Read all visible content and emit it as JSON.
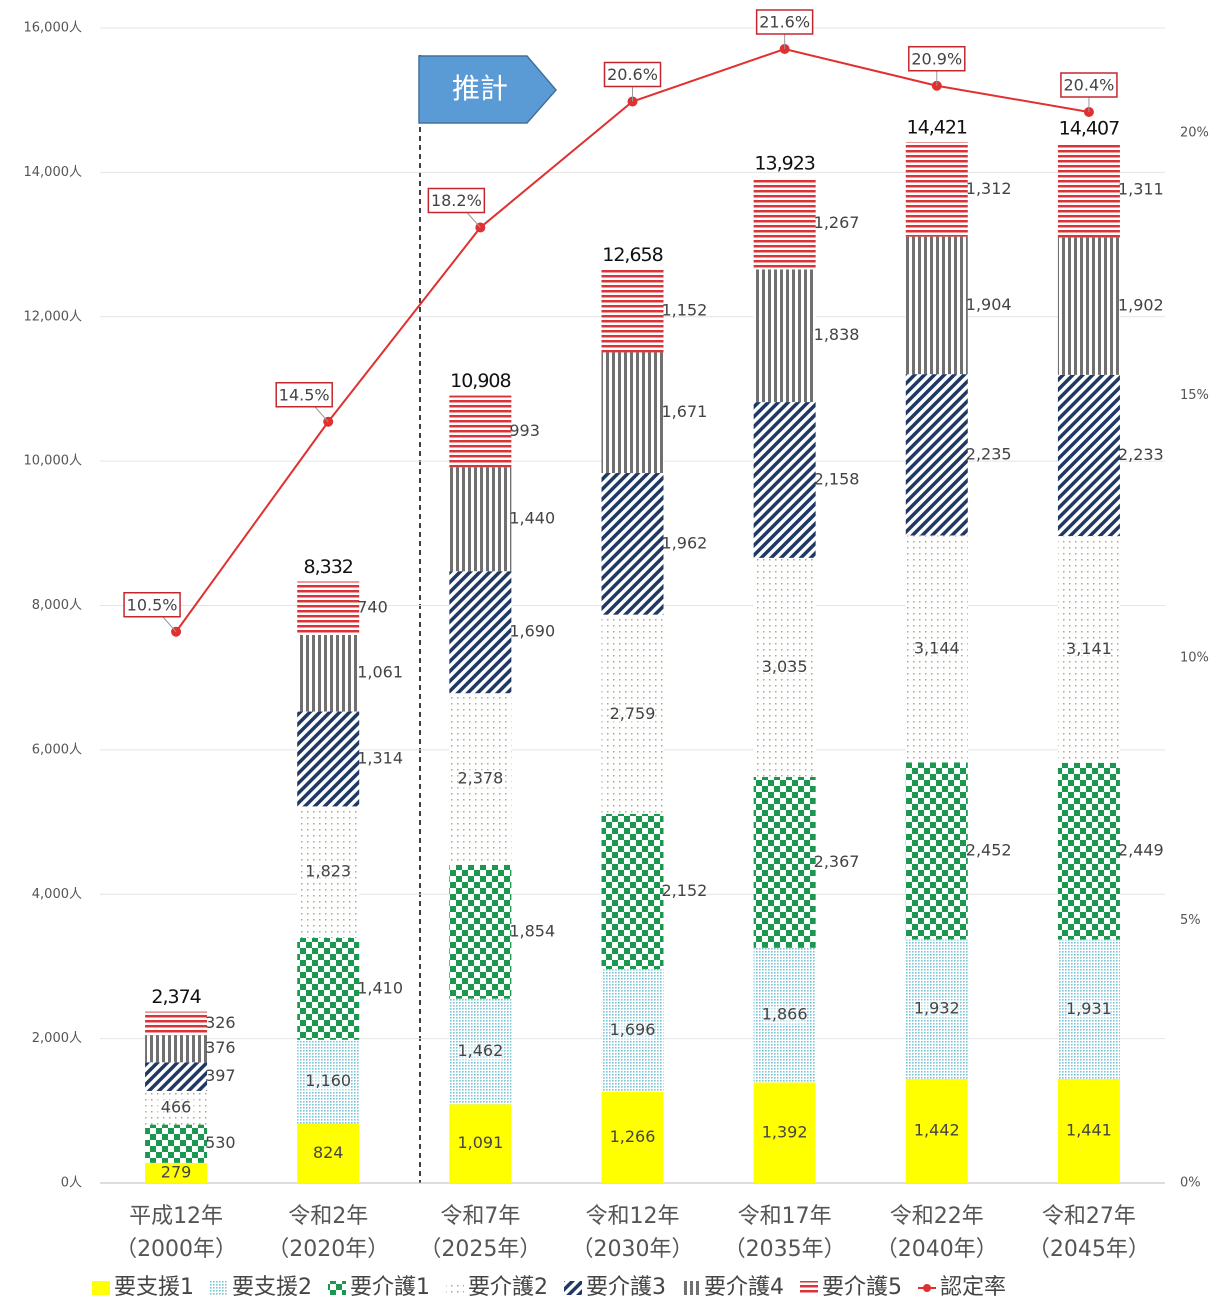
{
  "chart_data": {
    "type": "stacked-bar-line",
    "annotation": "推計",
    "categories": [
      "平成12年\n（2000年）",
      "令和2年\n（2020年）",
      "令和7年\n（2025年）",
      "令和12年\n（2030年）",
      "令和17年\n（2035年）",
      "令和22年\n（2040年）",
      "令和27年\n（2045年）"
    ],
    "series": [
      {
        "name": "要支援1",
        "color": "#ffff00",
        "pattern": "solid",
        "values": [
          279,
          824,
          1091,
          1266,
          1392,
          1442,
          1441
        ],
        "value_labels": [
          "279",
          "824",
          "1,091",
          "1,266",
          "1,392",
          "1,442",
          "1,441"
        ]
      },
      {
        "name": "要支援2",
        "color": "#7cc4d8",
        "pattern": "dots",
        "values": [
          null,
          1160,
          1462,
          1696,
          1866,
          1932,
          1931
        ],
        "value_labels": [
          null,
          "1,160",
          "1,462",
          "1,696",
          "1,866",
          "1,932",
          "1,931"
        ]
      },
      {
        "name": "要介護1",
        "color": "#1a9850",
        "pattern": "checker",
        "values": [
          530,
          1410,
          1854,
          2152,
          2367,
          2452,
          2449
        ],
        "value_labels": [
          "530",
          "1,410",
          "1,854",
          "2,152",
          "2,367",
          "2,452",
          "2,449"
        ]
      },
      {
        "name": "要介護2",
        "color": "#b8a67a",
        "pattern": "sparse",
        "values": [
          466,
          1823,
          2378,
          2759,
          3035,
          3144,
          3141
        ],
        "value_labels": [
          "466",
          "1,823",
          "2,378",
          "2,759",
          "3,035",
          "3,144",
          "3,141"
        ]
      },
      {
        "name": "要介護3",
        "color": "#1f3864",
        "pattern": "diagonal",
        "values": [
          397,
          1314,
          1690,
          1962,
          2158,
          2235,
          2233
        ],
        "value_labels": [
          "397",
          "1,314",
          "1,690",
          "1,962",
          "2,158",
          "2,235",
          "2,233"
        ]
      },
      {
        "name": "要介護4",
        "color": "#707070",
        "pattern": "vertical",
        "values": [
          376,
          1061,
          1440,
          1671,
          1838,
          1904,
          1902
        ],
        "value_labels": [
          "376",
          "1,061",
          "1,440",
          "1,671",
          "1,838",
          "1,904",
          "1,902"
        ]
      },
      {
        "name": "要介護5",
        "color": "#d9343a",
        "pattern": "horizontal",
        "values": [
          326,
          740,
          993,
          1152,
          1267,
          1312,
          1311
        ],
        "value_labels": [
          "326",
          "740",
          "993",
          "1,152",
          "1,267",
          "1,312",
          "1,311"
        ]
      },
      {
        "name": "認定率",
        "color": "#e03030",
        "axis": "y2",
        "values": [
          10.5,
          14.5,
          18.2,
          20.6,
          21.6,
          20.9,
          20.4
        ],
        "value_labels": [
          "10.5%",
          "14.5%",
          "18.2%",
          "20.6%",
          "21.6%",
          "20.9%",
          "20.4%"
        ]
      }
    ],
    "totals": {
      "values": [
        2374,
        8332,
        10908,
        12658,
        13923,
        14421,
        14407
      ],
      "value_labels": [
        "2,374",
        "8,332",
        "10,908",
        "12,658",
        "13,923",
        "14,421",
        "14,407"
      ]
    },
    "ylim": [
      0,
      16000
    ],
    "yticks": [
      {
        "value": 0,
        "label": "0人"
      },
      {
        "value": 2000,
        "label": "2,000人"
      },
      {
        "value": 4000,
        "label": "4,000人"
      },
      {
        "value": 6000,
        "label": "6,000人"
      },
      {
        "value": 8000,
        "label": "8,000人"
      },
      {
        "value": 10000,
        "label": "10,000人"
      },
      {
        "value": 12000,
        "label": "12,000人"
      },
      {
        "value": 14000,
        "label": "14,000人"
      },
      {
        "value": 16000,
        "label": "16,000人"
      }
    ],
    "y2lim": [
      0,
      22
    ],
    "y2ticks": [
      {
        "value": 0,
        "label": "0%"
      },
      {
        "value": 5,
        "label": "5%"
      },
      {
        "value": 10,
        "label": "10%"
      },
      {
        "value": 15,
        "label": "15%"
      },
      {
        "value": 20,
        "label": "20%"
      }
    ],
    "grid": true
  }
}
